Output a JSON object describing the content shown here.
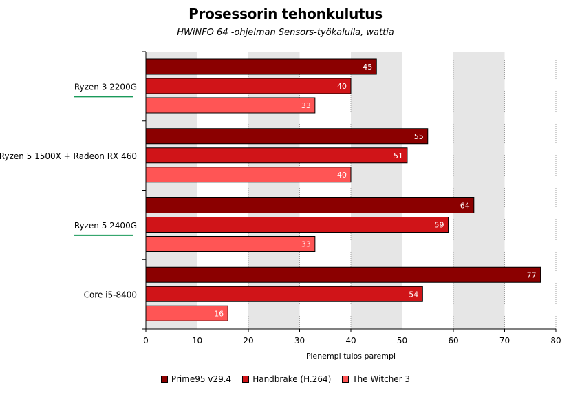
{
  "chart_data": {
    "type": "bar",
    "orientation": "horizontal",
    "title": "Prosessorin tehonkulutus",
    "subtitle": "HWiNFO 64 -ohjelman Sensors-työkalulla, wattia",
    "xlabel": "Pienempi tulos parempi",
    "ylabel": "",
    "xlim": [
      0,
      80
    ],
    "xticks": [
      "0",
      "10",
      "20",
      "30",
      "40",
      "50",
      "60",
      "70",
      "80"
    ],
    "grid": true,
    "legend_position": "bottom",
    "categories": [
      "Ryzen 3 2200G",
      "Ryzen 5 1500X + Radeon RX 460",
      "Ryzen 5 2400G",
      "Core i5-8400"
    ],
    "highlighted_categories": [
      "Ryzen 3 2200G",
      "Ryzen 5 2400G"
    ],
    "series": [
      {
        "name": "Prime95 v29.4",
        "color": "#8b0000",
        "values": [
          45,
          55,
          64,
          77
        ]
      },
      {
        "name": "Handbrake (H.264)",
        "color": "#d01418",
        "values": [
          40,
          51,
          59,
          54
        ]
      },
      {
        "name": "The Witcher 3",
        "color": "#ff5555",
        "values": [
          33,
          40,
          33,
          16
        ]
      }
    ]
  },
  "colors": {
    "highlight_underline": "#1a9a5a",
    "plot_band": "#e6e6e6",
    "grid": "#a0a0a0"
  }
}
